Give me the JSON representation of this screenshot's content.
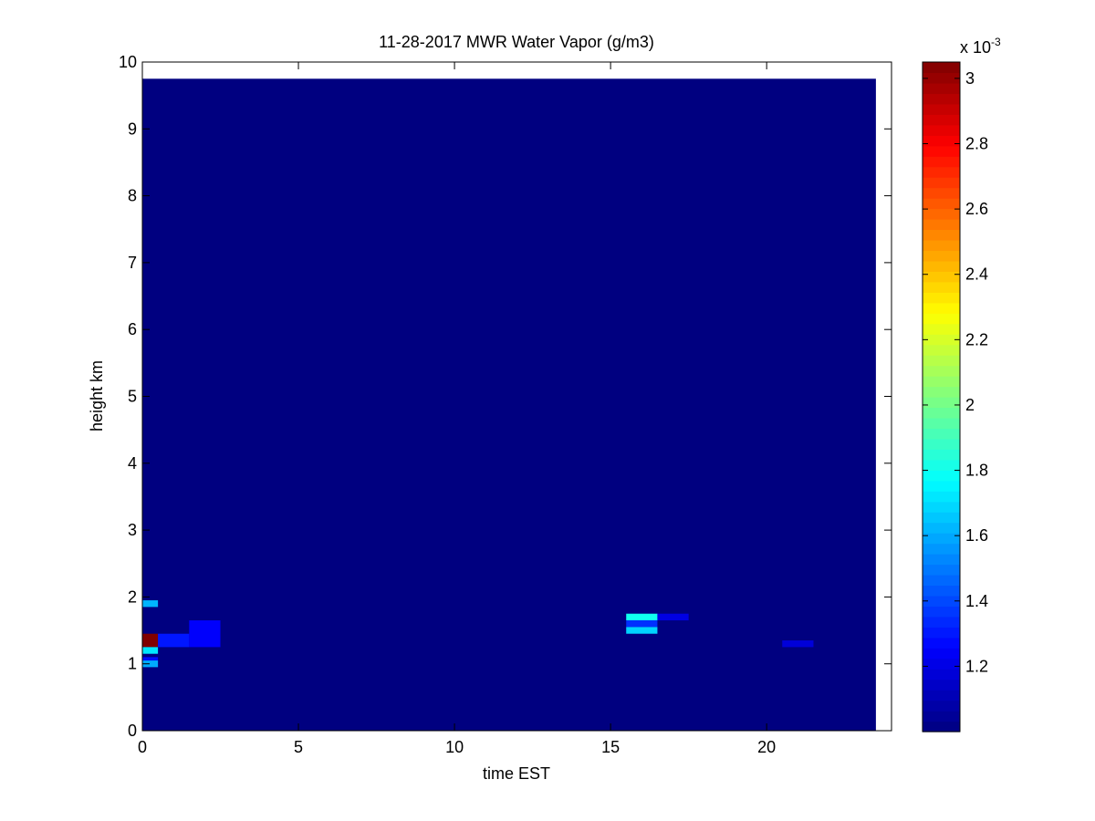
{
  "chart_data": {
    "type": "heatmap",
    "title": "11-28-2017 MWR Water Vapor (g/m3)",
    "xlabel": "time EST",
    "ylabel": "height km",
    "xlim": [
      0,
      24
    ],
    "ylim": [
      0,
      10
    ],
    "xticks": [
      0,
      5,
      10,
      15,
      20
    ],
    "yticks": [
      0,
      1,
      2,
      3,
      4,
      5,
      6,
      7,
      8,
      9,
      10
    ],
    "data_extent": {
      "x": [
        0,
        23.5
      ],
      "y": [
        0,
        9.75
      ]
    },
    "background_value": 1.0,
    "cells": [
      {
        "x": [
          0,
          0.5
        ],
        "y": [
          1.85,
          1.95
        ],
        "value": 1.62
      },
      {
        "x": [
          0,
          0.5
        ],
        "y": [
          1.25,
          1.45
        ],
        "value": 3.05
      },
      {
        "x": [
          0.5,
          1.5
        ],
        "y": [
          1.25,
          1.45
        ],
        "value": 1.3
      },
      {
        "x": [
          1.5,
          2.5
        ],
        "y": [
          1.25,
          1.65
        ],
        "value": 1.25
      },
      {
        "x": [
          0,
          0.5
        ],
        "y": [
          1.15,
          1.25
        ],
        "value": 1.72
      },
      {
        "x": [
          0,
          0.5
        ],
        "y": [
          0.95,
          1.05
        ],
        "value": 1.6
      },
      {
        "x": [
          0,
          0.5
        ],
        "y": [
          1.05,
          1.1
        ],
        "value": 1.28
      },
      {
        "x": [
          15.5,
          16.5
        ],
        "y": [
          1.65,
          1.75
        ],
        "value": 1.8
      },
      {
        "x": [
          15.5,
          16.5
        ],
        "y": [
          1.55,
          1.65
        ],
        "value": 1.35
      },
      {
        "x": [
          15.5,
          16.5
        ],
        "y": [
          1.45,
          1.55
        ],
        "value": 1.68
      },
      {
        "x": [
          16.5,
          17.5
        ],
        "y": [
          1.65,
          1.75
        ],
        "value": 1.2
      },
      {
        "x": [
          20.5,
          21.5
        ],
        "y": [
          1.25,
          1.35
        ],
        "value": 1.18
      }
    ],
    "colorbar": {
      "colormap": "jet",
      "range": [
        1.0,
        3.05
      ],
      "ticks": [
        "1.2",
        "1.4",
        "1.6",
        "1.8",
        "2",
        "2.2",
        "2.4",
        "2.6",
        "2.8",
        "3"
      ],
      "scale_label": "x 10",
      "scale_exponent": "-3"
    }
  }
}
